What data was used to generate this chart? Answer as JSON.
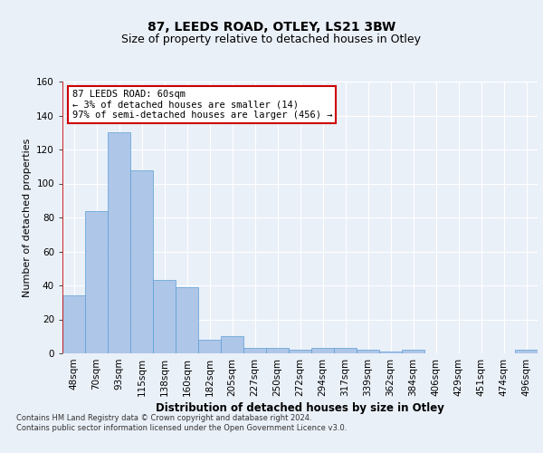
{
  "title1": "87, LEEDS ROAD, OTLEY, LS21 3BW",
  "title2": "Size of property relative to detached houses in Otley",
  "xlabel": "Distribution of detached houses by size in Otley",
  "ylabel": "Number of detached properties",
  "categories": [
    "48sqm",
    "70sqm",
    "93sqm",
    "115sqm",
    "138sqm",
    "160sqm",
    "182sqm",
    "205sqm",
    "227sqm",
    "250sqm",
    "272sqm",
    "294sqm",
    "317sqm",
    "339sqm",
    "362sqm",
    "384sqm",
    "406sqm",
    "429sqm",
    "451sqm",
    "474sqm",
    "496sqm"
  ],
  "values": [
    34,
    84,
    130,
    108,
    43,
    39,
    8,
    10,
    3,
    3,
    2,
    3,
    3,
    2,
    1,
    2,
    0,
    0,
    0,
    0,
    2
  ],
  "bar_color": "#aec6e8",
  "bar_edge_color": "#5a9fd4",
  "marker_line_color": "#cc0000",
  "annotation_text": "87 LEEDS ROAD: 60sqm\n← 3% of detached houses are smaller (14)\n97% of semi-detached houses are larger (456) →",
  "annotation_box_color": "#ffffff",
  "annotation_box_edge": "#cc0000",
  "ylim": [
    0,
    160
  ],
  "yticks": [
    0,
    20,
    40,
    60,
    80,
    100,
    120,
    140,
    160
  ],
  "background_color": "#eaf0f8",
  "grid_color": "#ffffff",
  "footer": "Contains HM Land Registry data © Crown copyright and database right 2024.\nContains public sector information licensed under the Open Government Licence v3.0.",
  "title1_fontsize": 10,
  "title2_fontsize": 9,
  "xlabel_fontsize": 8.5,
  "ylabel_fontsize": 8,
  "tick_fontsize": 7.5,
  "annotation_fontsize": 7.5,
  "footer_fontsize": 6
}
